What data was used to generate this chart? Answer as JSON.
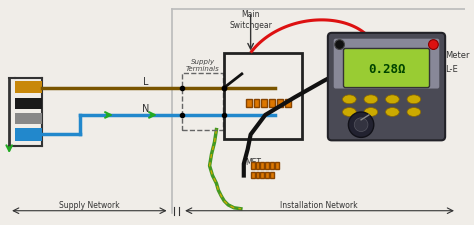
{
  "bg_color": "#f0ede8",
  "supply_network_label": "Supply Network",
  "installation_network_label": "Installation Network",
  "L_label": "L",
  "N_label": "N",
  "main_switchgear_label": "Main\nSwitchgear",
  "supply_terminals_label": "Supply\nTerminals",
  "MET_label": "MET",
  "meter_label": "Meter",
  "LE_label": "L-E",
  "reading_label": "0.28Ω",
  "cable_brown": "#c8880a",
  "cable_black": "#1a1a1a",
  "cable_gray": "#888888",
  "cable_blue": "#2288cc",
  "line_L_color": "#7a5500",
  "line_N_color": "#2288cc",
  "arrow_color": "#22aa22",
  "box_color": "#222222",
  "dashed_color": "#666666",
  "wall_line_color": "#bbbbbb",
  "meter_body_color": "#555560",
  "meter_body_color2": "#888895",
  "meter_screen_color": "#99cc33",
  "meter_text_color": "#004400",
  "red_wire_color": "#dd1111",
  "black_wire_color": "#111111",
  "connector_orange": "#dd7700",
  "earth_green": "#449922",
  "earth_yellow": "#ccaa00"
}
